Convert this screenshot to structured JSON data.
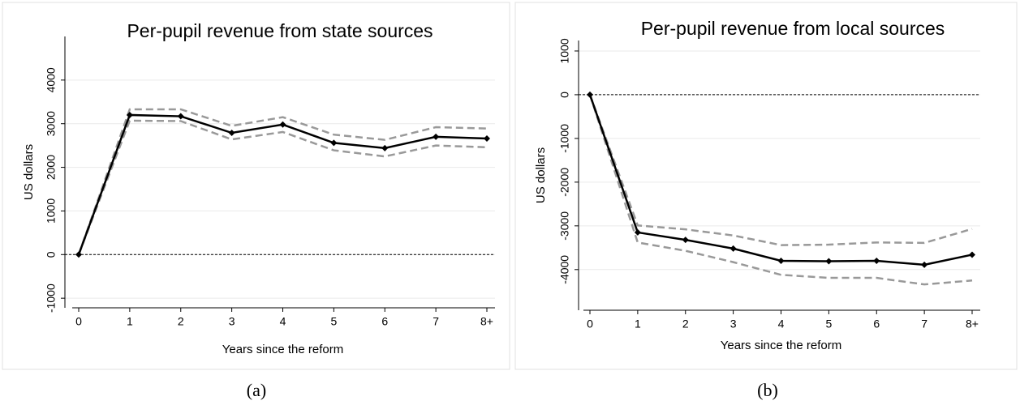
{
  "chart_data": [
    {
      "type": "line",
      "title": "Per-pupil revenue from state sources",
      "xlabel": "Years since the reform",
      "ylabel": "US dollars",
      "caption": "(a)",
      "categories": [
        "0",
        "1",
        "2",
        "3",
        "4",
        "5",
        "6",
        "7",
        "8+"
      ],
      "series": [
        {
          "color": "#000000",
          "style": "solid",
          "markers": true,
          "values": [
            0,
            3200,
            3170,
            2790,
            2980,
            2560,
            2440,
            2700,
            2660
          ]
        },
        {
          "color": "#999999",
          "style": "dashed",
          "markers": false,
          "values": [
            0,
            3330,
            3330,
            2950,
            3150,
            2750,
            2630,
            2920,
            2890
          ]
        },
        {
          "color": "#999999",
          "style": "dashed",
          "markers": false,
          "values": [
            0,
            3070,
            3060,
            2640,
            2810,
            2390,
            2250,
            2500,
            2460
          ]
        }
      ],
      "ylim": [
        -1220,
        5000
      ],
      "yticks": [
        -1000,
        0,
        1000,
        2000,
        3000,
        4000
      ],
      "grid": true,
      "refline": 0
    },
    {
      "type": "line",
      "title": "Per-pupil revenue from local sources",
      "xlabel": "Years since the reform",
      "ylabel": "US dollars",
      "caption": "(b)",
      "categories": [
        "0",
        "1",
        "2",
        "3",
        "4",
        "5",
        "6",
        "7",
        "8+"
      ],
      "series": [
        {
          "color": "#000000",
          "style": "solid",
          "markers": true,
          "values": [
            0,
            -3150,
            -3320,
            -3520,
            -3800,
            -3810,
            -3800,
            -3890,
            -3660
          ]
        },
        {
          "color": "#999999",
          "style": "dashed",
          "markers": false,
          "values": [
            0,
            -2990,
            -3080,
            -3220,
            -3440,
            -3430,
            -3380,
            -3390,
            -3070
          ]
        },
        {
          "color": "#999999",
          "style": "dashed",
          "markers": false,
          "values": [
            0,
            -3380,
            -3570,
            -3830,
            -4120,
            -4190,
            -4190,
            -4340,
            -4250
          ]
        }
      ],
      "ylim": [
        -4930,
        1240
      ],
      "yticks": [
        -4000,
        -3000,
        -2000,
        -1000,
        0,
        1000
      ],
      "grid": true,
      "refline": 0
    }
  ]
}
